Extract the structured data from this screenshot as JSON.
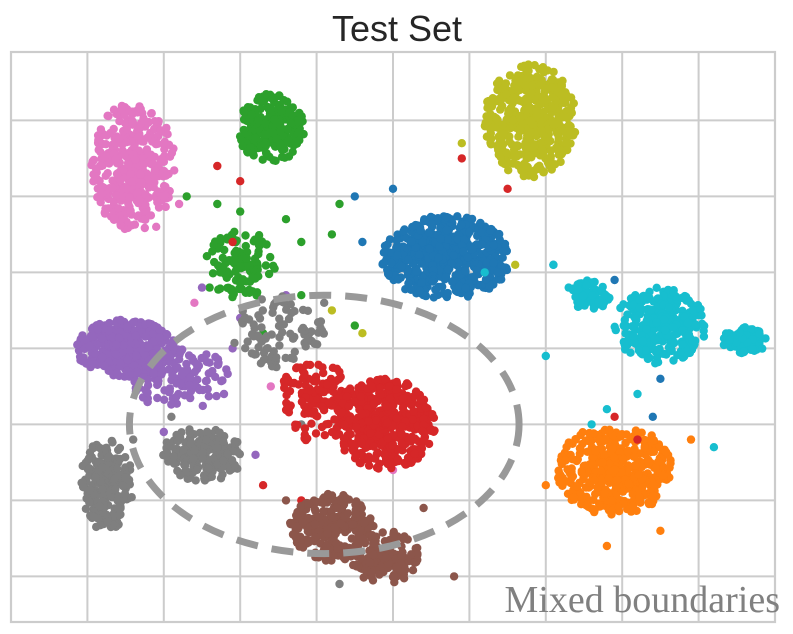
{
  "chart_data": {
    "type": "scatter",
    "title": "Test Set",
    "xlabel": "",
    "ylabel": "",
    "xlim": [
      -1.0,
      9.0
    ],
    "ylim": [
      -0.6,
      6.9
    ],
    "grid": true,
    "legend": "none",
    "tick_labels_visible": false,
    "annotation": {
      "text": "Mixed boundaries",
      "shape": "dashed-ellipse",
      "color": "#999999",
      "center": [
        3.1,
        2.0
      ],
      "radius": [
        5.1,
        3.4
      ]
    },
    "series": [
      {
        "color": "#e377c2",
        "clusters": [
          {
            "center": [
              0.6,
              5.4
            ],
            "radius": [
              0.55,
              0.85
            ],
            "n": 420
          }
        ],
        "scattered": [
          [
            1.2,
            4.9
          ],
          [
            0.9,
            4.6
          ],
          [
            1.4,
            3.6
          ],
          [
            2.4,
            2.5
          ],
          [
            3.6,
            1.9
          ],
          [
            4.0,
            1.4
          ]
        ]
      },
      {
        "color": "#2ca02c",
        "clusters": [
          {
            "center": [
              2.4,
              5.9
            ],
            "radius": [
              0.45,
              0.45
            ],
            "n": 260
          },
          {
            "center": [
              2.0,
              4.1
            ],
            "radius": [
              0.5,
              0.45
            ],
            "n": 120
          }
        ],
        "scattered": [
          [
            2.0,
            4.8
          ],
          [
            2.6,
            4.7
          ],
          [
            2.8,
            4.4
          ],
          [
            3.2,
            4.5
          ],
          [
            2.8,
            3.7
          ],
          [
            1.7,
            4.9
          ],
          [
            1.3,
            5.0
          ],
          [
            3.3,
            4.9
          ],
          [
            3.5,
            3.3
          ],
          [
            1.6,
            3.8
          ],
          [
            2.3,
            3.2
          ]
        ]
      },
      {
        "color": "#bcbd22",
        "clusters": [
          {
            "center": [
              5.8,
              6.0
            ],
            "radius": [
              0.6,
              0.75
            ],
            "n": 440
          }
        ],
        "scattered": [
          [
            4.9,
            5.7
          ],
          [
            4.9,
            4.4
          ],
          [
            5.6,
            4.1
          ],
          [
            3.2,
            3.5
          ],
          [
            3.6,
            3.2
          ]
        ]
      },
      {
        "color": "#1f77b4",
        "clusters": [
          {
            "center": [
              4.7,
              4.2
            ],
            "radius": [
              0.85,
              0.55
            ],
            "n": 560
          }
        ],
        "scattered": [
          [
            3.6,
            4.4
          ],
          [
            3.5,
            5.0
          ],
          [
            4.0,
            5.1
          ],
          [
            6.1,
            4.1
          ],
          [
            6.9,
            3.9
          ],
          [
            7.5,
            2.6
          ],
          [
            7.4,
            2.1
          ]
        ]
      },
      {
        "color": "#17becf",
        "clusters": [
          {
            "center": [
              7.5,
              3.3
            ],
            "radius": [
              0.6,
              0.5
            ],
            "n": 330
          },
          {
            "center": [
              8.6,
              3.1
            ],
            "radius": [
              0.3,
              0.18
            ],
            "n": 90
          },
          {
            "center": [
              6.6,
              3.7
            ],
            "radius": [
              0.3,
              0.2
            ],
            "n": 60
          }
        ],
        "scattered": [
          [
            6.1,
            4.1
          ],
          [
            6.3,
            3.8
          ],
          [
            6.0,
            2.9
          ],
          [
            6.8,
            2.2
          ],
          [
            7.2,
            2.4
          ],
          [
            8.2,
            1.7
          ],
          [
            6.6,
            2.0
          ],
          [
            5.2,
            4.0
          ]
        ]
      },
      {
        "color": "#ff7f0e",
        "clusters": [
          {
            "center": [
              6.9,
              1.4
            ],
            "radius": [
              0.75,
              0.6
            ],
            "n": 430
          }
        ],
        "scattered": [
          [
            6.0,
            1.2
          ],
          [
            7.5,
            0.6
          ],
          [
            6.8,
            0.4
          ],
          [
            7.9,
            1.8
          ]
        ]
      },
      {
        "color": "#9467bd",
        "clusters": [
          {
            "center": [
              0.5,
              3.0
            ],
            "radius": [
              0.65,
              0.38
            ],
            "n": 400
          },
          {
            "center": [
              1.2,
              2.6
            ],
            "radius": [
              0.7,
              0.4
            ],
            "n": 120
          }
        ],
        "scattered": [
          [
            1.5,
            3.8
          ],
          [
            2.0,
            3.4
          ],
          [
            2.9,
            3.2
          ],
          [
            2.6,
            3.7
          ],
          [
            2.2,
            1.6
          ],
          [
            3.0,
            0.6
          ],
          [
            1.0,
            1.9
          ],
          [
            1.9,
            3.0
          ]
        ]
      },
      {
        "color": "#7f7f7f",
        "clusters": [
          {
            "center": [
              0.25,
              1.2
            ],
            "radius": [
              0.35,
              0.6
            ],
            "n": 260
          },
          {
            "center": [
              1.5,
              1.6
            ],
            "radius": [
              0.55,
              0.35
            ],
            "n": 200
          },
          {
            "center": [
              2.5,
              3.2
            ],
            "radius": [
              0.6,
              0.5
            ],
            "n": 90
          }
        ],
        "scattered": [
          [
            3.1,
            3.6
          ],
          [
            3.3,
            2.6
          ],
          [
            2.8,
            2.0
          ],
          [
            0.6,
            1.8
          ],
          [
            1.1,
            2.1
          ],
          [
            3.3,
            -0.1
          ]
        ]
      },
      {
        "color": "#d62728",
        "clusters": [
          {
            "center": [
              3.9,
              2.0
            ],
            "radius": [
              0.65,
              0.6
            ],
            "n": 420
          },
          {
            "center": [
              3.0,
              2.3
            ],
            "radius": [
              0.5,
              0.55
            ],
            "n": 140
          }
        ],
        "scattered": [
          [
            1.7,
            5.4
          ],
          [
            2.0,
            5.2
          ],
          [
            5.5,
            5.1
          ],
          [
            4.9,
            5.5
          ],
          [
            2.3,
            1.2
          ],
          [
            2.8,
            1.0
          ],
          [
            6.9,
            2.1
          ],
          [
            7.2,
            1.8
          ],
          [
            1.9,
            4.4
          ]
        ]
      },
      {
        "color": "#8c564b",
        "clusters": [
          {
            "center": [
              3.2,
              0.65
            ],
            "radius": [
              0.55,
              0.45
            ],
            "n": 260
          },
          {
            "center": [
              3.9,
              0.25
            ],
            "radius": [
              0.45,
              0.35
            ],
            "n": 140
          }
        ],
        "scattered": [
          [
            4.4,
            0.9
          ],
          [
            2.6,
            1.0
          ],
          [
            4.8,
            0.0
          ]
        ]
      }
    ]
  }
}
